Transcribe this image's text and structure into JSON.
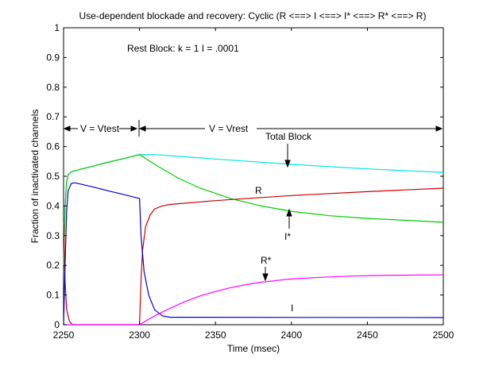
{
  "chart_data": {
    "type": "line",
    "title": "Use-dependent blockade and recovery:  Cyclic (R <==> I <==> I* <==> R* <==> R)",
    "xlabel": "Time (msec)",
    "ylabel": "Fraction of inactivated channels",
    "xlim": [
      2250,
      2500
    ],
    "ylim": [
      0,
      1
    ],
    "xticks": [
      2250,
      2300,
      2350,
      2400,
      2450,
      2500
    ],
    "yticks": [
      0,
      0.1,
      0.2,
      0.3,
      0.4,
      0.5,
      0.6,
      0.7,
      0.8,
      0.9,
      1
    ],
    "grid": false,
    "legend": "none",
    "series": [
      {
        "color": "#00e5e5",
        "points": [
          [
            2250,
            0.2
          ],
          [
            2251,
            0.4
          ],
          [
            2252,
            0.48
          ],
          [
            2253,
            0.505
          ],
          [
            2255,
            0.515
          ],
          [
            2260,
            0.522
          ],
          [
            2270,
            0.535
          ],
          [
            2280,
            0.548
          ],
          [
            2290,
            0.56
          ],
          [
            2300,
            0.573
          ],
          [
            2310,
            0.573
          ],
          [
            2350,
            0.558
          ],
          [
            2400,
            0.54
          ],
          [
            2450,
            0.525
          ],
          [
            2500,
            0.513
          ]
        ]
      },
      {
        "color": "#00cc00",
        "points": [
          [
            2250,
            0.2
          ],
          [
            2251,
            0.4
          ],
          [
            2252,
            0.48
          ],
          [
            2253,
            0.505
          ],
          [
            2255,
            0.515
          ],
          [
            2260,
            0.522
          ],
          [
            2270,
            0.535
          ],
          [
            2280,
            0.548
          ],
          [
            2290,
            0.56
          ],
          [
            2300,
            0.573
          ],
          [
            2310,
            0.54
          ],
          [
            2325,
            0.495
          ],
          [
            2340,
            0.46
          ],
          [
            2360,
            0.425
          ],
          [
            2380,
            0.4
          ],
          [
            2400,
            0.382
          ],
          [
            2425,
            0.367
          ],
          [
            2450,
            0.358
          ],
          [
            2475,
            0.352
          ],
          [
            2500,
            0.345
          ]
        ]
      },
      {
        "color": "#cc0000",
        "points": [
          [
            2250,
            0.35
          ],
          [
            2251,
            0.15
          ],
          [
            2252,
            0.05
          ],
          [
            2254,
            0.01
          ],
          [
            2256,
            0.0
          ],
          [
            2300,
            0.0
          ],
          [
            2301,
            0.15
          ],
          [
            2302,
            0.25
          ],
          [
            2304,
            0.33
          ],
          [
            2307,
            0.37
          ],
          [
            2310,
            0.39
          ],
          [
            2315,
            0.4
          ],
          [
            2320,
            0.405
          ],
          [
            2350,
            0.418
          ],
          [
            2400,
            0.435
          ],
          [
            2450,
            0.448
          ],
          [
            2500,
            0.46
          ]
        ]
      },
      {
        "color": "#0000cc",
        "points": [
          [
            2250,
            0.0
          ],
          [
            2251,
            0.2
          ],
          [
            2252,
            0.38
          ],
          [
            2253,
            0.45
          ],
          [
            2255,
            0.475
          ],
          [
            2257,
            0.478
          ],
          [
            2260,
            0.475
          ],
          [
            2270,
            0.463
          ],
          [
            2280,
            0.45
          ],
          [
            2290,
            0.438
          ],
          [
            2300,
            0.425
          ],
          [
            2301,
            0.3
          ],
          [
            2303,
            0.18
          ],
          [
            2306,
            0.1
          ],
          [
            2310,
            0.05
          ],
          [
            2315,
            0.03
          ],
          [
            2320,
            0.025
          ],
          [
            2500,
            0.024
          ]
        ]
      },
      {
        "color": "#ff00ff",
        "points": [
          [
            2250,
            0.0
          ],
          [
            2300,
            0.0
          ],
          [
            2305,
            0.015
          ],
          [
            2310,
            0.03
          ],
          [
            2320,
            0.055
          ],
          [
            2330,
            0.078
          ],
          [
            2340,
            0.097
          ],
          [
            2350,
            0.112
          ],
          [
            2360,
            0.125
          ],
          [
            2370,
            0.135
          ],
          [
            2380,
            0.143
          ],
          [
            2390,
            0.149
          ],
          [
            2400,
            0.154
          ],
          [
            2420,
            0.16
          ],
          [
            2440,
            0.164
          ],
          [
            2460,
            0.166
          ],
          [
            2480,
            0.167
          ],
          [
            2500,
            0.168
          ]
        ]
      }
    ],
    "annotations": {
      "rest_block": "Rest Block:  k = 1  I = .0001",
      "v_test": "V = Vtest",
      "v_rest": "V = Vrest",
      "total_block": "Total Block",
      "r": "R",
      "i_star": "I*",
      "r_star": "R*",
      "i": "I"
    }
  }
}
